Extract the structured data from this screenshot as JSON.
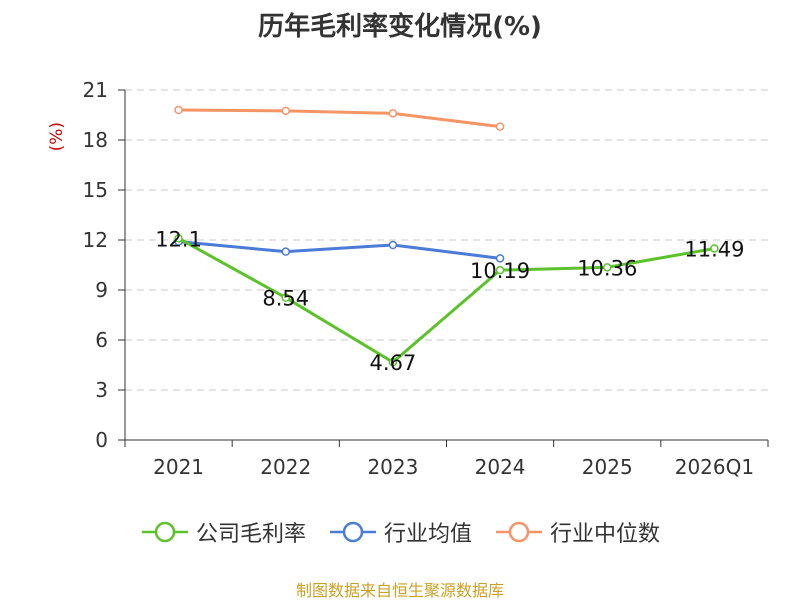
{
  "title": "历年毛利率变化情况(%)",
  "source": "制图数据来自恒生聚源数据库",
  "colors": {
    "background": "#ffffff",
    "axis": "#333333",
    "grid": "#c8c8c8",
    "unit": "#cc0000"
  },
  "chart_data": {
    "type": "line",
    "title": "历年毛利率变化情况(%)",
    "ylabel": "(%)",
    "xlabel": "",
    "categories": [
      "2021",
      "2022",
      "2023",
      "2024",
      "2025",
      "2026Q1"
    ],
    "ylim": [
      0,
      21
    ],
    "yticks": [
      0,
      3,
      6,
      9,
      12,
      15,
      18,
      21
    ],
    "grid": true,
    "legend_position": "bottom",
    "series": [
      {
        "name": "公司毛利率",
        "color": "#5cc22a",
        "values": [
          12.1,
          8.54,
          4.67,
          10.19,
          10.36,
          11.49
        ],
        "labels": [
          "12.1",
          "8.54",
          "4.67",
          "10.19",
          "10.36",
          "11.49"
        ]
      },
      {
        "name": "行业均值",
        "color": "#4a7bd6",
        "values": [
          11.9,
          11.3,
          11.7,
          10.9,
          null,
          null
        ],
        "labels": []
      },
      {
        "name": "行业中位数",
        "color": "#f59566",
        "values": [
          19.8,
          19.75,
          19.6,
          18.8,
          null,
          null
        ],
        "labels": []
      }
    ]
  }
}
